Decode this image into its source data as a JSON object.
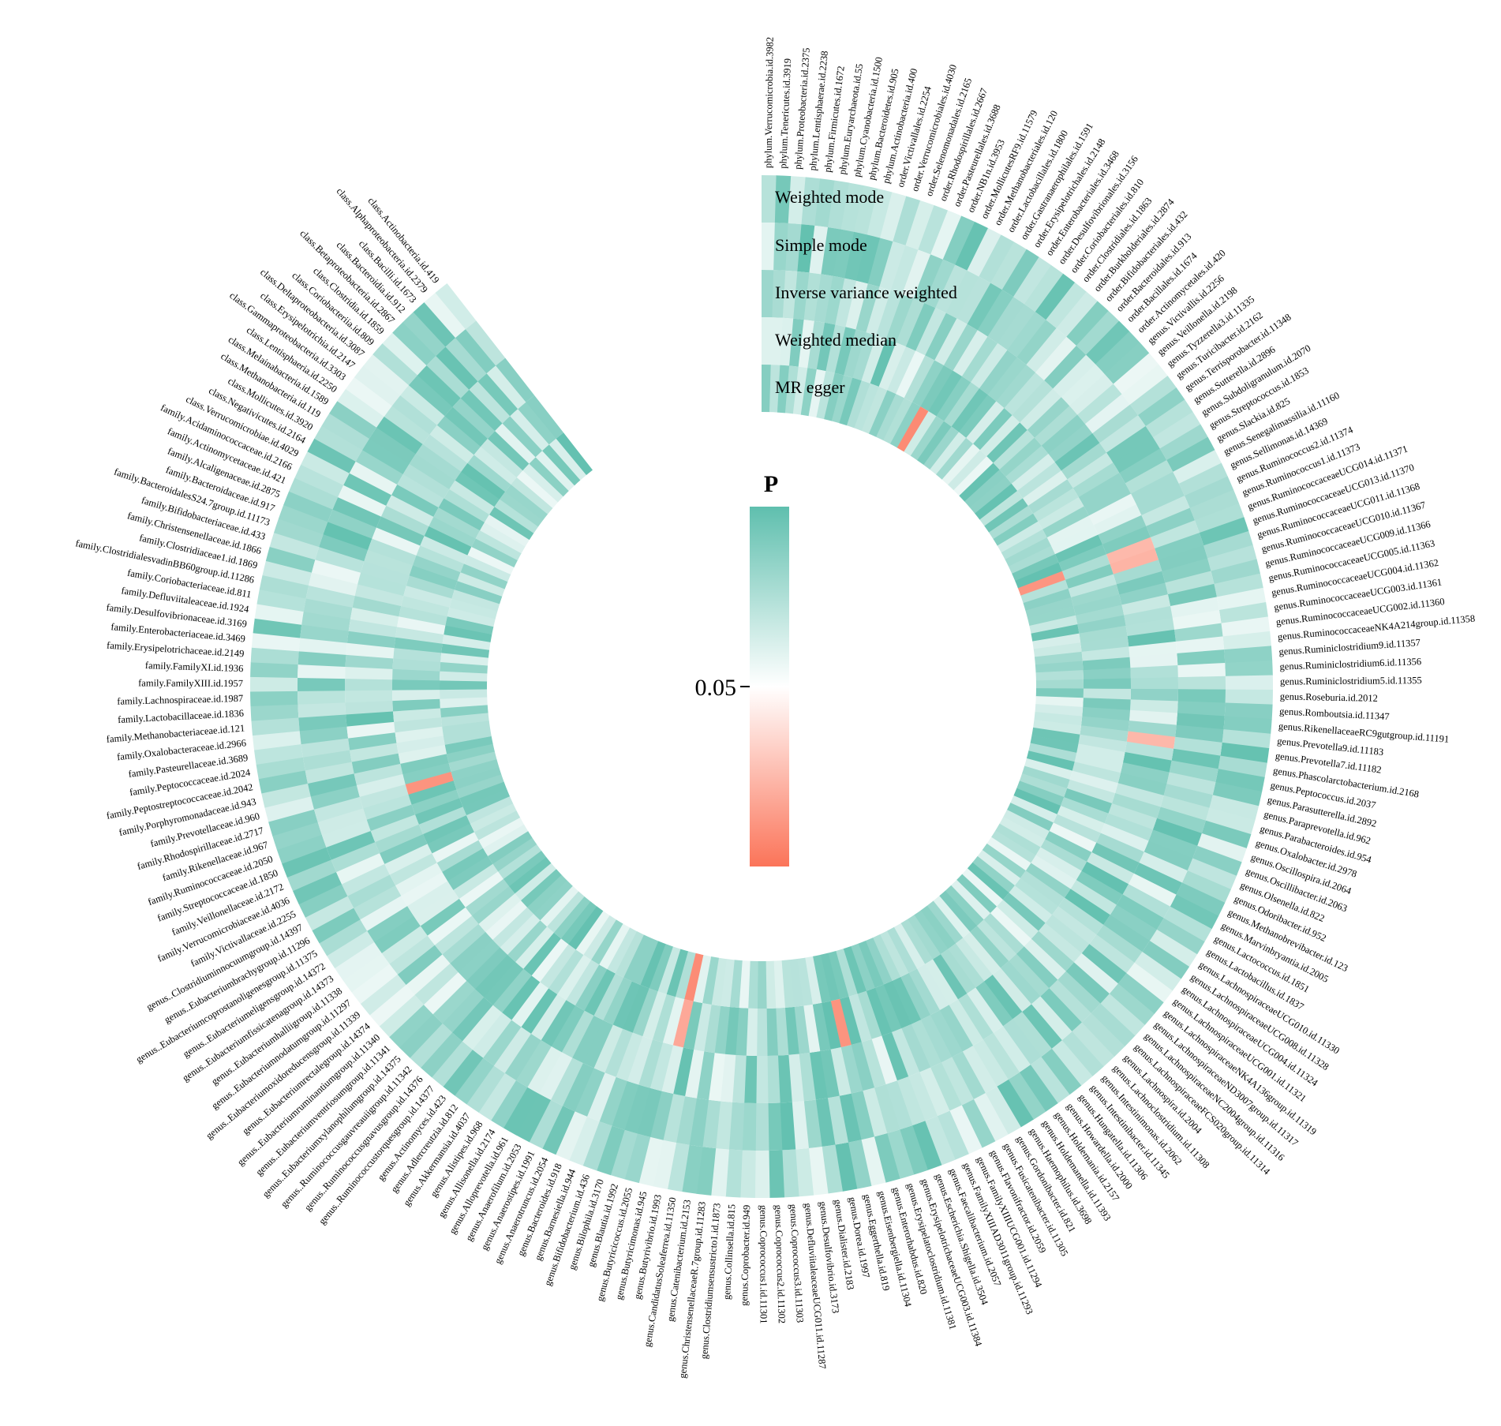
{
  "chart_data": {
    "type": "heatmap",
    "title": "",
    "layout": "circular",
    "ring_labels": [
      "Weighted mode",
      "Simple mode",
      "Inverse variance weighted",
      "Weighted median",
      "MR egger"
    ],
    "legend": {
      "title": "P",
      "tick_label": "0.05",
      "color_high": "#5fbfae",
      "color_mid": "#ffffff",
      "color_low": "#fb7459"
    },
    "taxa": [
      "phylum.Verrucomicrobia.id.3982",
      "phylum.Tenericutes.id.3919",
      "phylum.Proteobacteria.id.2375",
      "phylum.Lentisphaerae.id.2238",
      "phylum.Firmicutes.id.1672",
      "phylum.Euryarchaeota.id.55",
      "phylum.Cyanobacteria.id.1500",
      "phylum.Bacteroidetes.id.905",
      "phylum.Actinobacteria.id.400",
      "order.Victivallales.id.2254",
      "order.Verrucomicrobiales.id.4030",
      "order.Selenomonadales.id.2165",
      "order.Rhodospirillales.id.2667",
      "order.Pasteurellales.id.3688",
      "order.NB1n.id.3953",
      "order.MollicutesRF9.id.11579",
      "order.Methanobacteriales.id.120",
      "order.Lactobacillales.id.1800",
      "order.Gastranaerophilales.id.1591",
      "order.Erysipelotrichales.id.2148",
      "order.Enterobacteriales.id.3468",
      "order.Desulfovibrionales.id.3156",
      "order.Coriobacteriales.id.810",
      "order.Clostridiales.id.1863",
      "order.Burkholderiales.id.2874",
      "order.Bifidobacteriales.id.432",
      "order.Bacteroidales.id.913",
      "order.Bacillales.id.1674",
      "order.Actinomycetales.id.420",
      "genus.Victivallis.id.2256",
      "genus.Veillonella.id.2198",
      "genus.Tyzzerella3.id.11335",
      "genus.Turicibacter.id.2162",
      "genus.Terrisporobacter.id.11348",
      "genus.Sutterella.id.2896",
      "genus.Subdoligranulum.id.2070",
      "genus.Streptococcus.id.1853",
      "genus.Slackia.id.825",
      "genus.Senegalimassilia.id.11160",
      "genus.Sellimonas.id.14369",
      "genus.Ruminococcus2.id.11374",
      "genus.Ruminococcus1.id.11373",
      "genus.RuminococcaceaeUCG014.id.11371",
      "genus.RuminococcaceaeUCG013.id.11370",
      "genus.RuminococcaceaeUCG011.id.11368",
      "genus.RuminococcaceaeUCG010.id.11367",
      "genus.RuminococcaceaeUCG009.id.11366",
      "genus.RuminococcaceaeUCG005.id.11363",
      "genus.RuminococcaceaeUCG004.id.11362",
      "genus.RuminococcaceaeUCG003.id.11361",
      "genus.RuminococcaceaeUCG002.id.11360",
      "genus.RuminococcaceaeNK4A214group.id.11358",
      "genus.Ruminiclostridium9.id.11357",
      "genus.Ruminiclostridium6.id.11356",
      "genus.Ruminiclostridium5.id.11355",
      "genus.Roseburia.id.2012",
      "genus.Romboutsia.id.11347",
      "genus.RikenellaceaeRC9gutgroup.id.11191",
      "genus.Prevotella9.id.11183",
      "genus.Prevotella7.id.11182",
      "genus.Phascolarctobacterium.id.2168",
      "genus.Peptococcus.id.2037",
      "genus.Parasutterella.id.2892",
      "genus.Paraprevotella.id.962",
      "genus.Parabacteroides.id.954",
      "genus.Oxalobacter.id.2978",
      "genus.Oscillospira.id.2064",
      "genus.Oscillibacter.id.2063",
      "genus.Olsenella.id.822",
      "genus.Odoribacter.id.952",
      "genus.Methanobrevibacter.id.123",
      "genus.Marvinbryantia.id.2005",
      "genus.Lactococcus.id.1851",
      "genus.Lactobacillus.id.1837",
      "genus.LachnospiraceaeUCG010.id.11330",
      "genus.LachnospiraceaeUCG008.id.11328",
      "genus.LachnospiraceaeUCG004.id.11324",
      "genus.LachnospiraceaeUCG001.id.11321",
      "genus.LachnospiraceaeNK4A136group.id.11319",
      "genus.LachnospiraceaeND3007group.id.11317",
      "genus.LachnospiraceaeNC2004group.id.11316",
      "genus.LachnospiraceaeFCS020group.id.11314",
      "genus.Lachnospira.id.2004",
      "genus.Lachnoclostridium.id.11308",
      "genus.Intestinimonas.id.2062",
      "genus.Intestinibacter.id.11345",
      "genus.Hungatella.id.11306",
      "genus.Howardella.id.2000",
      "genus.Holdemania.id.2157",
      "genus.Holdemanella.id.11393",
      "genus.Haemophilus.id.3698",
      "genus.Gordonibacter.id.821",
      "genus.Fusicatenibacter.id.11305",
      "genus.Flavonifractor.id.2059",
      "genus.FamilyXIIIUCG001.id.11294",
      "genus.FamilyXIIIAD3011group.id.11293",
      "genus.Faecalibacterium.id.2057",
      "genus.Escherichia.Shigella.id.3504",
      "genus.ErysipelotrichaceaeUCG003.id.11384",
      "genus.Erysipelatoclostridium.id.11381",
      "genus.Enterorhabdus.id.820",
      "genus.Eisenbergiella.id.11304",
      "genus.Eggerthella.id.819",
      "genus.Dorea.id.1997",
      "genus.Dialister.id.2183",
      "genus.Desulfovibrio.id.3173",
      "genus.DefluviitaleaceaeUCG011.id.11287",
      "genus.Coprococcus3.id.11303",
      "genus.Coprococcus2.id.11302",
      "genus.Coprococcus1.id.11301",
      "genus.Coprobacter.id.949",
      "genus.Collinsella.id.815",
      "genus.Clostridiumsensustricto1.id.1873",
      "genus.ChristensenellaceaeR.7group.id.11283",
      "genus.Catenibacterium.id.2153",
      "genus.CandidatusSoleaferrea.id.11350",
      "genus.Butyrivibrio.id.1993",
      "genus.Butyricimonas.id.945",
      "genus.Butyricicoccus.id.2055",
      "genus.Blautia.id.1992",
      "genus.Bilophila.id.3170",
      "genus.Bifidobacterium.id.436",
      "genus.Barnesiella.id.944",
      "genus.Bacteroides.id.918",
      "genus.Anaerotruncus.id.2054",
      "genus.Anaerostipes.id.1991",
      "genus.Anaerofilum.id.2053",
      "genus.Alloprevotella.id.961",
      "genus.Allisonella.id.2174",
      "genus.Alistipes.id.968",
      "genus.Akkermansia.id.4037",
      "genus.Adlercreutzia.id.812",
      "genus.Actinomyces.id.423",
      "genus..Ruminococcustorquesgroup.id.14377",
      "genus..Ruminococcusgnavusgroup.id.14376",
      "genus..Ruminococcusgauvreauiigroup.id.11342",
      "genus..Eubacteriumxylanophilumgroup.id.14375",
      "genus..Eubacteriumventriosumgroup.id.11341",
      "genus..Eubacteriumruminantiumgroup.id.11340",
      "genus..Eubacteriumrectalegroup.id.14374",
      "genus..Eubacteriumoxidoreducensgroup.id.11339",
      "genus..Eubacteriumnodatumgroup.id.11297",
      "genus..Eubacteriumhalliigroup.id.11338",
      "genus..Eubacteriumfissicatenagroup.id.14373",
      "genus..Eubacteriumeligensgroup.id.14372",
      "genus..Eubacteriumcoprostanoligenesgroup.id.11375",
      "genus..Eubacteriumbrachygroup.id.11296",
      "genus..Clostridiuminnocuumgroup.id.14397",
      "family.Victivallaceae.id.2255",
      "family.Verrucomicrobiaceae.id.4036",
      "family.Veillonellaceae.id.2172",
      "family.Streptococcaceae.id.1850",
      "family.Ruminococcaceae.id.2050",
      "family.Rikenellaceae.id.967",
      "family.Rhodospirillaceae.id.2717",
      "family.Prevotellaceae.id.960",
      "family.Porphyromonadaceae.id.943",
      "family.Peptostreptococcaceae.id.2042",
      "family.Peptococcaceae.id.2024",
      "family.Pasteurellaceae.id.3689",
      "family.Oxalobacteraceae.id.2966",
      "family.Methanobacteriaceae.id.121",
      "family.Lactobacillaceae.id.1836",
      "family.Lachnospiraceae.id.1987",
      "family.FamilyXIII.id.1957",
      "family.FamilyXI.id.1936",
      "family.Erysipelotrichaceae.id.2149",
      "family.Enterobacteriaceae.id.3469",
      "family.Desulfovibrionaceae.id.3169",
      "family.Defluviitaleaceae.id.1924",
      "family.Coriobacteriaceae.id.811",
      "family.ClostridialesvadinBB60group.id.11286",
      "family.Clostridiaceae1.id.1869",
      "family.Christensenellaceae.id.1866",
      "family.Bifidobacteriaceae.id.433",
      "family.BacteroidalesS24.7group.id.11173",
      "family.Bacteroidaceae.id.917",
      "family.Alcaligenaceae.id.2875",
      "family.Actinomycetaceae.id.421",
      "family.Acidaminococcaceae.id.2166",
      "class.Verrucomicrobiae.id.4029",
      "class.Negativicutes.id.2164",
      "class.Mollicutes.id.3920",
      "class.Methanobacteria.id.119",
      "class.Melainabacteria.id.1589",
      "class.Lentisphaeria.id.2250",
      "class.Gammaproteobacteria.id.3303",
      "class.Erysipelotrichia.id.2147",
      "class.Deltaproteobacteria.id.3087",
      "class.Coriobacteriia.id.809",
      "class.Clostridia.id.1859",
      "class.Betaproteobacteria.id.2867",
      "class.Bacteroidia.id.912",
      "class.Bacilli.id.1673",
      "class.Alphaproteobacteria.id.2379",
      "class.Actinobacteria.id.419"
    ],
    "significant_cells": [
      {
        "taxon": "genus.RuminococcaceaeUCG014.id.11371",
        "method": "Inverse variance weighted"
      },
      {
        "taxon": "genus.RuminococcaceaeUCG013.id.11370",
        "method": "Inverse variance weighted"
      },
      {
        "taxon": "genus.RuminococcaceaeUCG014.id.11371",
        "method": "MR egger"
      },
      {
        "taxon": "order.Gastranaerophilales.id.1591",
        "method": "MR egger"
      },
      {
        "taxon": "genus.Prevotella7.id.11182",
        "method": "Inverse variance weighted"
      },
      {
        "taxon": "genus.Eisenbergiella.id.11304",
        "method": "Weighted median"
      },
      {
        "taxon": "genus.Butyricimonas.id.945",
        "method": "Weighted median"
      },
      {
        "taxon": "genus.Butyricimonas.id.945",
        "method": "MR egger"
      },
      {
        "taxon": "family.Rhodospirillaceae.id.2717",
        "method": "Weighted median"
      }
    ]
  }
}
